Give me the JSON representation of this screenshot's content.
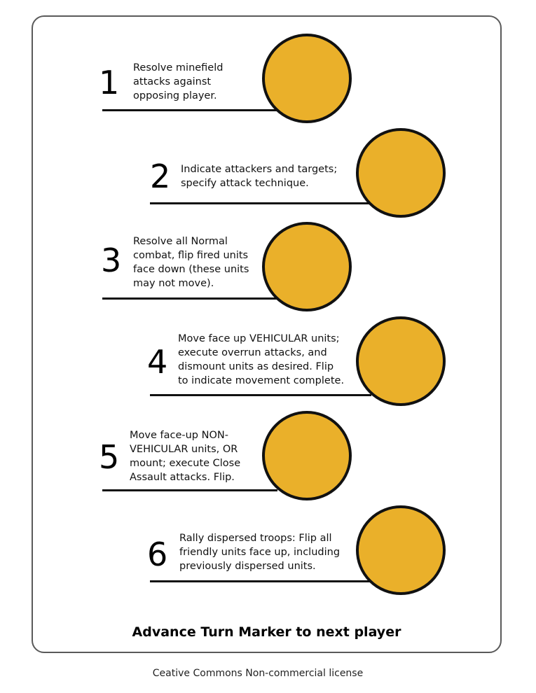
{
  "accent_color": "#EAB02A",
  "outline_color": "#111111",
  "steps": [
    {
      "number": "1",
      "text": "Resolve minefield\nattacks against\nopposing player."
    },
    {
      "number": "2",
      "text": "Indicate attackers and targets;\nspecify attack technique."
    },
    {
      "number": "3",
      "text": "Resolve all Normal\ncombat, flip fired units\nface down (these units\nmay not move)."
    },
    {
      "number": "4",
      "text": "Move face up VEHICULAR units;\nexecute overrun attacks, and\ndismount units as desired. Flip\nto indicate movement complete."
    },
    {
      "number": "5",
      "text": "Move face-up NON-\nVEHICULAR units, OR\nmount; execute Close\nAssault attacks. Flip."
    },
    {
      "number": "6",
      "text": "Rally dispersed troops: Flip all\nfriendly units face up, including\npreviously dispersed units."
    }
  ],
  "footer": {
    "title": "Advance Turn Marker to next player",
    "license": "Ceative Commons Non-commercial license"
  }
}
